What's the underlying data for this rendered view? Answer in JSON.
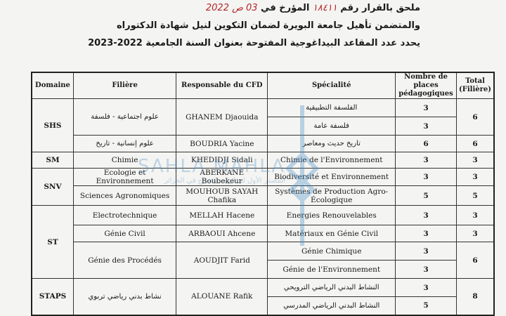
{
  "header": {
    "line1_prefix": "ملحق بالقرار رقم",
    "decision_number": "١٨٤١١",
    "line1_mid": "المؤرخ في",
    "date": "03 ص 2022",
    "line2": "والمتضمن تأهيل جامعة البويرة لضمان التكوين لنيل شهادة الدكتوراه",
    "line3": "يحدد عدد المقاعد البيداغوجية المفتوحة بعنوان السنة الجامعية 2022-2023"
  },
  "table": {
    "columns": [
      "Domaine",
      "Filière",
      "Responsable du CFD",
      "Spécialité",
      "Nombre de places pédagogiques",
      "Total (Filière)"
    ],
    "rows": [
      {
        "domaine": "SHS",
        "filiere": "علوم اجتماعية - فلسفة",
        "responsable": "GHANEM Djaouida",
        "specialites": [
          {
            "name": "الفلسفة التطبيقية",
            "places": "3"
          },
          {
            "name": "فلسفة عامة",
            "places": "3"
          }
        ],
        "total": "6"
      },
      {
        "filiere": "علوم إنسانية - تاريخ",
        "responsable": "BOUDRIA Yacine",
        "specialites": [
          {
            "name": "تاريخ حديث ومعاصر",
            "places": "6"
          }
        ],
        "total": "6"
      },
      {
        "domaine": "SM",
        "filiere": "Chimie",
        "responsable": "KHEDIDJI Sidali",
        "specialites": [
          {
            "name": "Chimie de l'Environnement",
            "places": "3"
          }
        ],
        "total": "3"
      },
      {
        "domaine": "SNV",
        "filiere": "Ecologie et Environnement",
        "responsable": "ABERKANE Boubekeur",
        "specialites": [
          {
            "name": "Biodiversité et Environnement",
            "places": "3"
          }
        ],
        "total": "3"
      },
      {
        "filiere": "Sciences Agronomiques",
        "responsable": "MOUHOUB SAYAH Chafika",
        "specialites": [
          {
            "name": "Systèmes de Production Agro-Écologique",
            "places": "5"
          }
        ],
        "total": "5"
      },
      {
        "domaine": "ST",
        "filiere": "Electrotechnique",
        "responsable": "MELLAH Hacene",
        "specialites": [
          {
            "name": "Energies Renouvelables",
            "places": "3"
          }
        ],
        "total": "3"
      },
      {
        "filiere": "Génie Civil",
        "responsable": "ARBAOUI Ahcene",
        "specialites": [
          {
            "name": "Matériaux en Génie Civil",
            "places": "3"
          }
        ],
        "total": "3"
      },
      {
        "filiere": "Génie des Procédés",
        "responsable": "AOUDJIT Farid",
        "specialites": [
          {
            "name": "Génie Chimique",
            "places": "3"
          },
          {
            "name": "Génie de l'Environnement",
            "places": "3"
          }
        ],
        "total": "6"
      },
      {
        "domaine": "STAPS",
        "filiere": "نشاط بدني رياضي تربوي",
        "responsable": "ALOUANE Rafik",
        "specialites": [
          {
            "name": "النشاط البدني الرياضي الترويحي",
            "places": "3"
          },
          {
            "name": "النشاط البدني الرياضي المدرسي",
            "places": "5"
          }
        ],
        "total": "8"
      }
    ]
  },
  "watermark": {
    "text": "SAHLA MAHLA",
    "subtitle": "المصدر الأول لمذكرات التخرج في الجزائر"
  }
}
